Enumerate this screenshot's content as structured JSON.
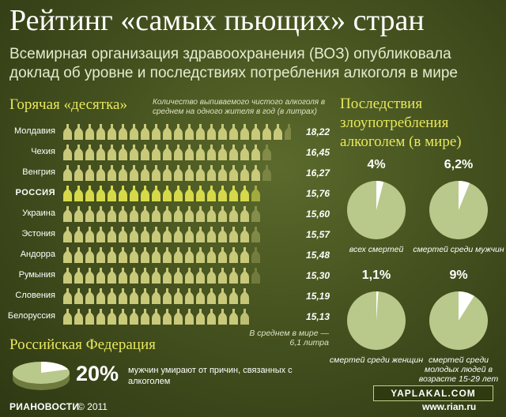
{
  "title": "Рейтинг «самых пьющих» стран",
  "subtitle": "Всемирная организация здравоохранения (ВОЗ) опубликовала доклад об уровне и последствиях потребления алкоголя в мире",
  "ranking": {
    "heading": "Горячая «десятка»",
    "note": "Количество выпиваемого чистого алкоголя в среднем на одного жителя в год (в литрах)",
    "average_note": "В среднем в мире — 6,1 литра"
  },
  "russia_section": {
    "heading": "Российская Федерация",
    "percent": "20%",
    "text": "мужчин умирают от причин, связанных с алкоголем"
  },
  "consequences": {
    "heading": "Последствия злоупотребления алкоголем (в мире)"
  },
  "chart_data": [
    {
      "type": "bar",
      "categories": [
        "Молдавия",
        "Чехия",
        "Венгрия",
        "РОССИЯ",
        "Украина",
        "Эстония",
        "Андорра",
        "Румыния",
        "Словения",
        "Белоруссия"
      ],
      "values": [
        18.22,
        16.45,
        16.27,
        15.76,
        15.6,
        15.57,
        15.48,
        15.3,
        15.19,
        15.13
      ],
      "value_labels": [
        "18,22",
        "16,45",
        "16,27",
        "15,76",
        "15,60",
        "15,57",
        "15,48",
        "15,30",
        "15,19",
        "15,13"
      ],
      "highlight_category": "РОССИЯ",
      "ylabel": "Количество выпиваемого чистого алкоголя в среднем на одного жителя в год (в литрах)"
    },
    {
      "type": "pie",
      "slices": [
        {
          "label_pct": "4%",
          "value": 4,
          "caption": "всех смертей"
        },
        {
          "label_pct": "6,2%",
          "value": 6.2,
          "caption": "смертей среди мужчин"
        },
        {
          "label_pct": "1,1%",
          "value": 1.1,
          "caption": "смертей среди женщин"
        },
        {
          "label_pct": "9%",
          "value": 9,
          "caption": "смертей среди молодых людей в возрасте 15-29 лет"
        }
      ]
    },
    {
      "type": "pie",
      "values": [
        20
      ],
      "label": "20%"
    }
  ],
  "footer": {
    "brand": "РИАНОВОСТИ",
    "year": "© 2011",
    "watermark": "YAPLAKAL.COM",
    "site": "www.rian.ru"
  },
  "colors": {
    "accent_yellow": "#e8e85c",
    "bottle": "#c9c97a",
    "bottle_highlight": "#d6d94a",
    "pie_fill": "#b9c98c",
    "pie_slice": "#ffffff"
  }
}
